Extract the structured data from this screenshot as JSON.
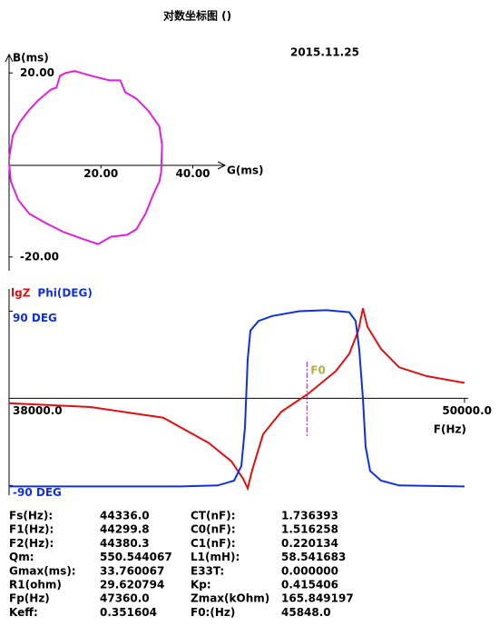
{
  "title": "对数坐标图 ()",
  "date": "2015.11.25",
  "chart_data": [
    {
      "type": "line",
      "x_label": "G(ms)",
      "y_label": "B(ms)",
      "xlim": [
        0,
        47
      ],
      "ylim": [
        -23,
        24
      ],
      "xticks": [
        {
          "value": 20,
          "label": "20.00"
        },
        {
          "value": 40,
          "label": "40.00"
        }
      ],
      "yticks": [
        {
          "value": 20,
          "label": "20.00"
        },
        {
          "value": -20,
          "label": "-20.00"
        }
      ],
      "series": [
        {
          "name": null,
          "color": "#e020e0",
          "x": [
            0,
            0.8,
            2.4,
            4.4,
            6.3,
            9.1,
            10.3,
            11.1,
            12.3,
            14.3,
            17.8,
            21.8,
            24.2,
            25.3,
            27.7,
            30.3,
            32.7,
            33.3,
            33.1,
            32.7,
            31.3,
            29.7,
            27.7,
            25.7,
            22.2,
            19.4,
            15.8,
            11.9,
            7.9,
            4.4,
            2,
            0.4,
            0
          ],
          "values": [
            1.4,
            6.4,
            9.4,
            12,
            14,
            16.4,
            16.8,
            19.4,
            20,
            20.4,
            19.4,
            18.4,
            18.4,
            15.8,
            14.4,
            11.8,
            8.4,
            4.4,
            -1.6,
            -3.6,
            -6.6,
            -10.6,
            -14,
            -15.2,
            -15.6,
            -17.2,
            -16,
            -14.6,
            -12.6,
            -10.6,
            -7.6,
            -3.6,
            0.4
          ]
        }
      ]
    },
    {
      "type": "line",
      "x_label": "F(Hz)",
      "xlim": [
        38000,
        50000
      ],
      "ylim": [
        -100,
        113
      ],
      "xticks": [
        {
          "value": 38000,
          "label": "38000.0"
        },
        {
          "value": 50000,
          "label": "50000.0"
        }
      ],
      "yticks": [
        {
          "value": 90,
          "label": "90 DEG"
        },
        {
          "value": -90,
          "label": "-90 DEG"
        }
      ],
      "marker": {
        "label": "F0",
        "x": 45848,
        "color": "#b0b040"
      },
      "series": [
        {
          "name": "lgZ",
          "color": "#e01010",
          "x": [
            38000,
            40151,
            42064,
            43259,
            43857,
            44167,
            44287,
            44406,
            44693,
            45172,
            45889,
            46606,
            46964,
            47203,
            47323,
            47442,
            47801,
            48279,
            48996,
            50000
          ],
          "values": [
            -5,
            -9,
            -20,
            -46,
            -65,
            -83,
            -93,
            -74,
            -37,
            -14,
            5,
            28,
            46,
            70,
            93,
            74,
            51,
            32,
            23,
            16
          ]
        },
        {
          "name": "Phi(DEG)",
          "color": "#1030e0",
          "x": [
            38000,
            42542,
            43498,
            43928,
            44120,
            44215,
            44287,
            44359,
            44574,
            44932,
            45650,
            46367,
            46964,
            47132,
            47227,
            47323,
            47395,
            47514,
            47801,
            48279,
            50000
          ],
          "values": [
            -91,
            -91,
            -90,
            -85,
            -70,
            -30,
            40,
            70,
            80,
            85,
            90,
            91,
            89,
            80,
            50,
            0,
            -50,
            -75,
            -85,
            -90,
            -91
          ]
        }
      ]
    }
  ],
  "params": [
    [
      [
        "Fs(Hz):",
        "44336.0"
      ],
      [
        "CT(nF):",
        "1.736393"
      ]
    ],
    [
      [
        "F1(Hz):",
        "44299.8"
      ],
      [
        "C0(nF):",
        "1.516258"
      ]
    ],
    [
      [
        "F2(Hz):",
        "44380.3"
      ],
      [
        "C1(nF):",
        "0.220134"
      ]
    ],
    [
      [
        "Qm:",
        "550.544067"
      ],
      [
        "L1(mH):",
        "58.541683"
      ]
    ],
    [
      [
        "Gmax(ms):",
        "33.760067"
      ],
      [
        "E33T:",
        "0.000000"
      ]
    ],
    [
      [
        "R1(ohm)",
        "29.620794"
      ],
      [
        "Kp:",
        "0.415406"
      ]
    ],
    [
      [
        "Fp(Hz)",
        "47360.0"
      ],
      [
        "Zmax(kOhm)",
        "165.849197"
      ]
    ],
    [
      [
        "Keff:",
        "0.351604"
      ],
      [
        "F0:(Hz)",
        "45848.0"
      ]
    ]
  ]
}
